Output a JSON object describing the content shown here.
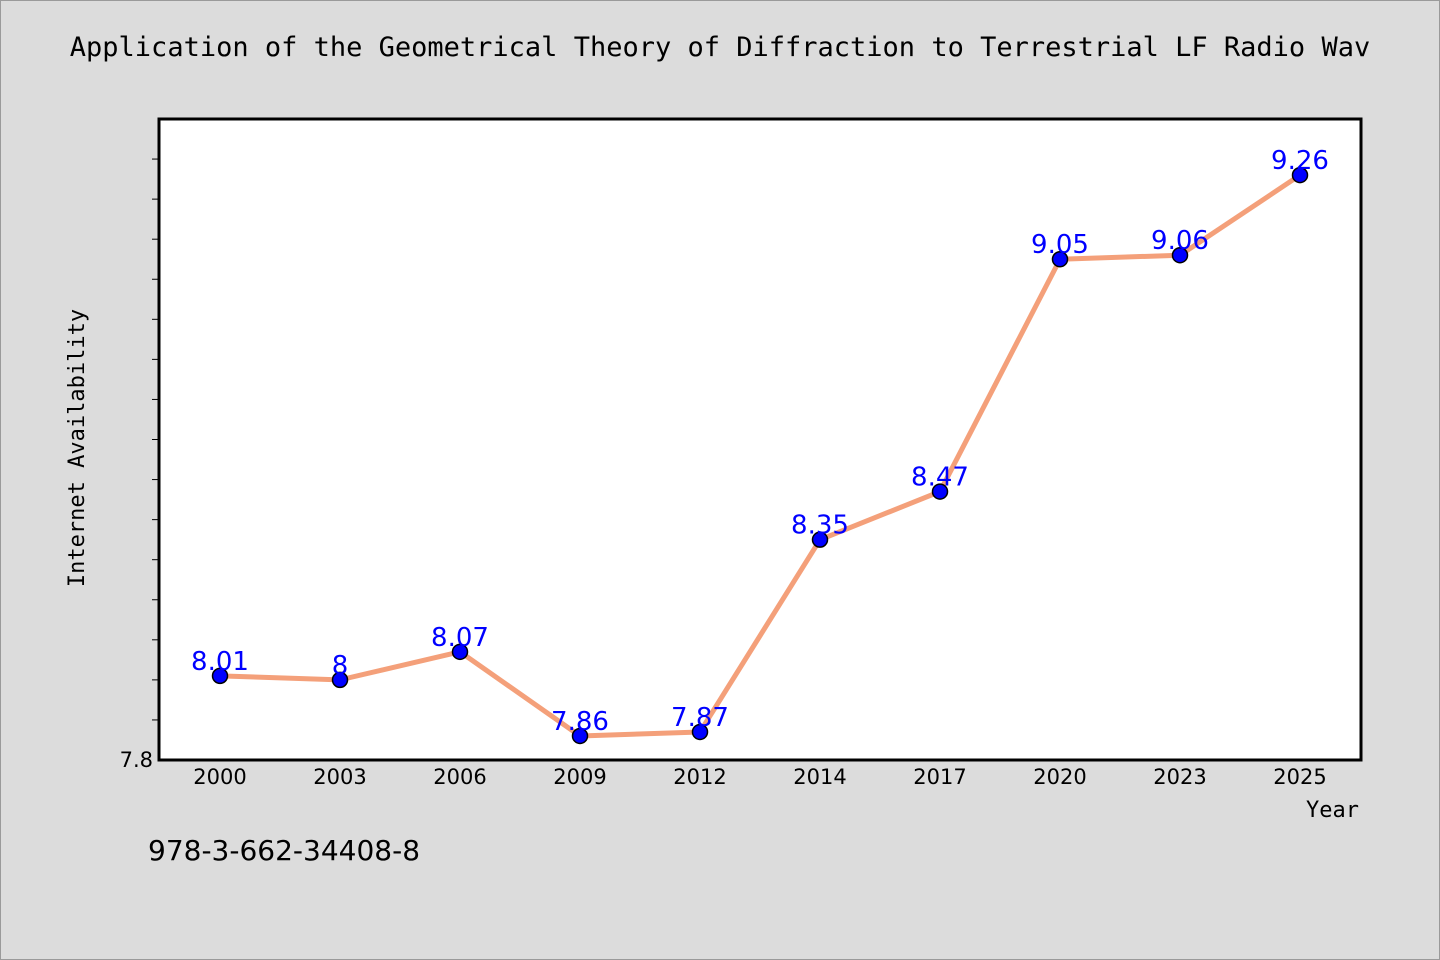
{
  "chart_data": {
    "type": "line",
    "title": "Application of the Geometrical Theory of Diffraction to Terrestrial LF Radio Wav",
    "xlabel": "Year",
    "ylabel": "Internet Availability",
    "categories": [
      "2000",
      "2003",
      "2006",
      "2009",
      "2012",
      "2014",
      "2017",
      "2020",
      "2023",
      "2025"
    ],
    "series": [
      {
        "values": [
          8.01,
          8,
          8.07,
          7.86,
          7.87,
          8.35,
          8.47,
          9.05,
          9.06,
          9.26
        ]
      }
    ],
    "data_labels": [
      "8.01",
      "8",
      "8.07",
      "7.86",
      "7.87",
      "8.35",
      "8.47",
      "9.05",
      "9.06",
      "9.26"
    ],
    "ylim": [
      7.8,
      9.4
    ],
    "y_tick_labels": [
      "7.8"
    ],
    "grid": false,
    "legend": "none",
    "colors": {
      "line": "#f4a07a",
      "marker": "#0000ff",
      "label": "#0000ff",
      "background": "#dcdcdc",
      "plot_background": "#ffffff"
    }
  },
  "footer": {
    "isbn": "978-3-662-34408-8"
  }
}
